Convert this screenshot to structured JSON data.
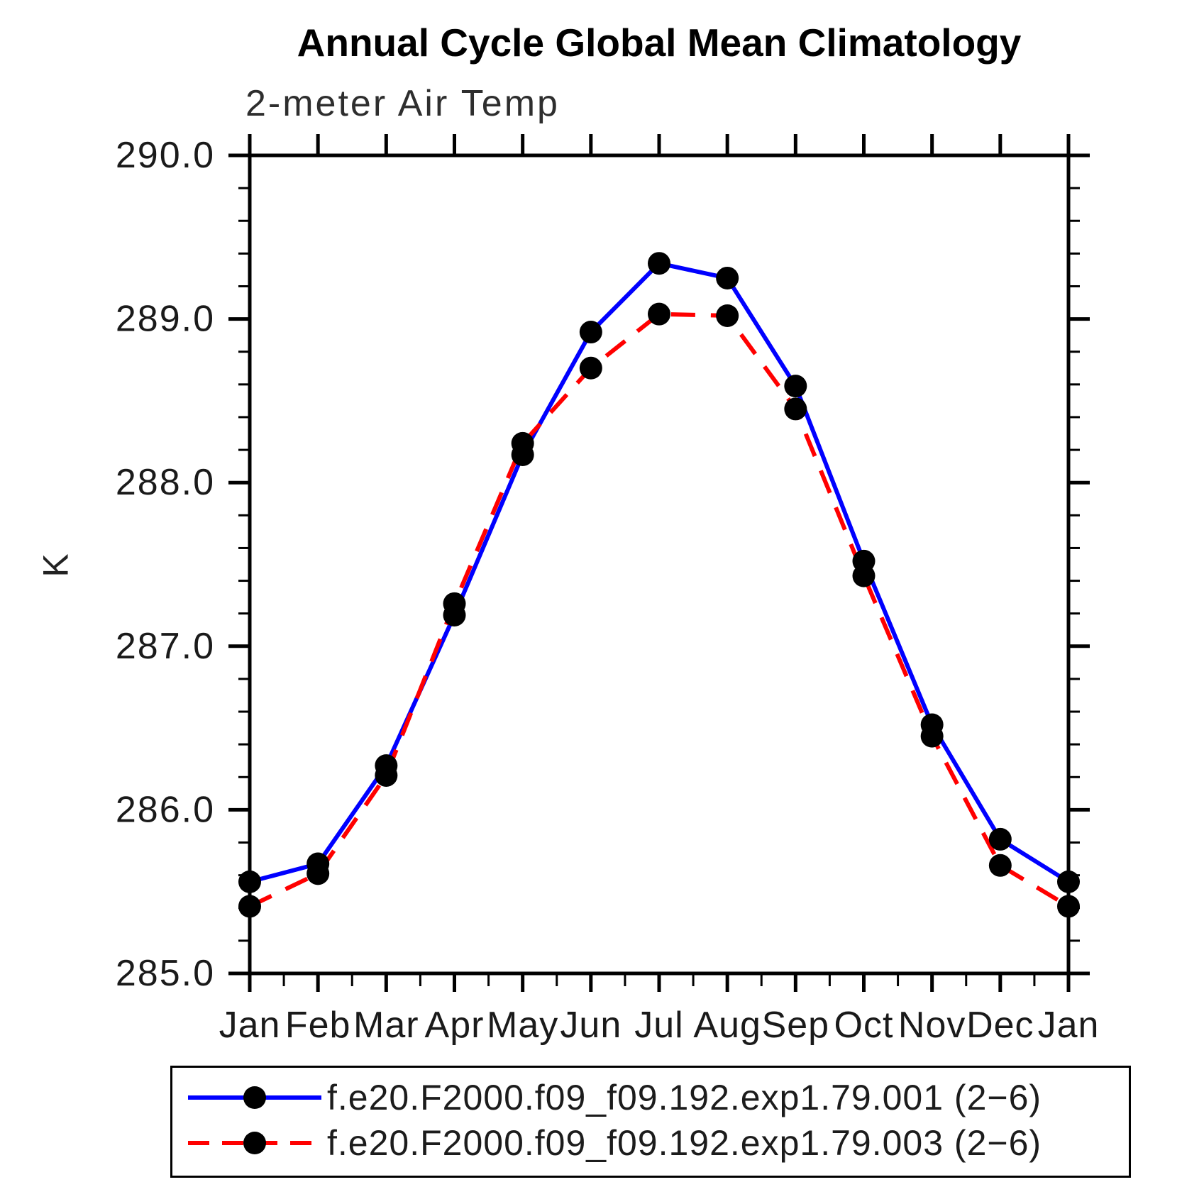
{
  "header": {
    "title": "Annual Cycle Global Mean Climatology",
    "subtitle": "2-meter Air Temp"
  },
  "chart_data": {
    "type": "line",
    "title": "Annual Cycle Global Mean Climatology",
    "subtitle": "2-meter Air Temp",
    "ylabel": "K",
    "xlabel": "",
    "ylim": [
      285.0,
      290.0
    ],
    "grid": false,
    "legend_position": "bottom",
    "yticks": [
      {
        "value": 290.0,
        "label": "290.0"
      },
      {
        "value": 289.0,
        "label": "289.0"
      },
      {
        "value": 288.0,
        "label": "288.0"
      },
      {
        "value": 287.0,
        "label": "287.0"
      },
      {
        "value": 286.0,
        "label": "286.0"
      },
      {
        "value": 285.0,
        "label": "285.0"
      }
    ],
    "y_minor_step": 0.2,
    "categories": [
      "Jan",
      "Feb",
      "Mar",
      "Apr",
      "May",
      "Jun",
      "Jul",
      "Aug",
      "Sep",
      "Oct",
      "Nov",
      "Dec",
      "Jan"
    ],
    "series": [
      {
        "name": "f.e20.F2000.f09_f09.192.exp1.79.001 (2−6)",
        "color": "#0000ff",
        "style": "solid",
        "marker": "filled-circle",
        "marker_color": "#000000",
        "values": [
          285.56,
          285.67,
          286.27,
          287.19,
          288.17,
          288.92,
          289.34,
          289.25,
          288.59,
          287.52,
          286.52,
          285.82,
          285.56
        ]
      },
      {
        "name": "f.e20.F2000.f09_f09.192.exp1.79.003 (2−6)",
        "color": "#ff0000",
        "style": "dashed",
        "marker": "filled-circle",
        "marker_color": "#000000",
        "values": [
          285.41,
          285.61,
          286.21,
          287.26,
          288.24,
          288.7,
          289.03,
          289.02,
          288.45,
          287.43,
          286.45,
          285.66,
          285.41
        ]
      }
    ]
  }
}
